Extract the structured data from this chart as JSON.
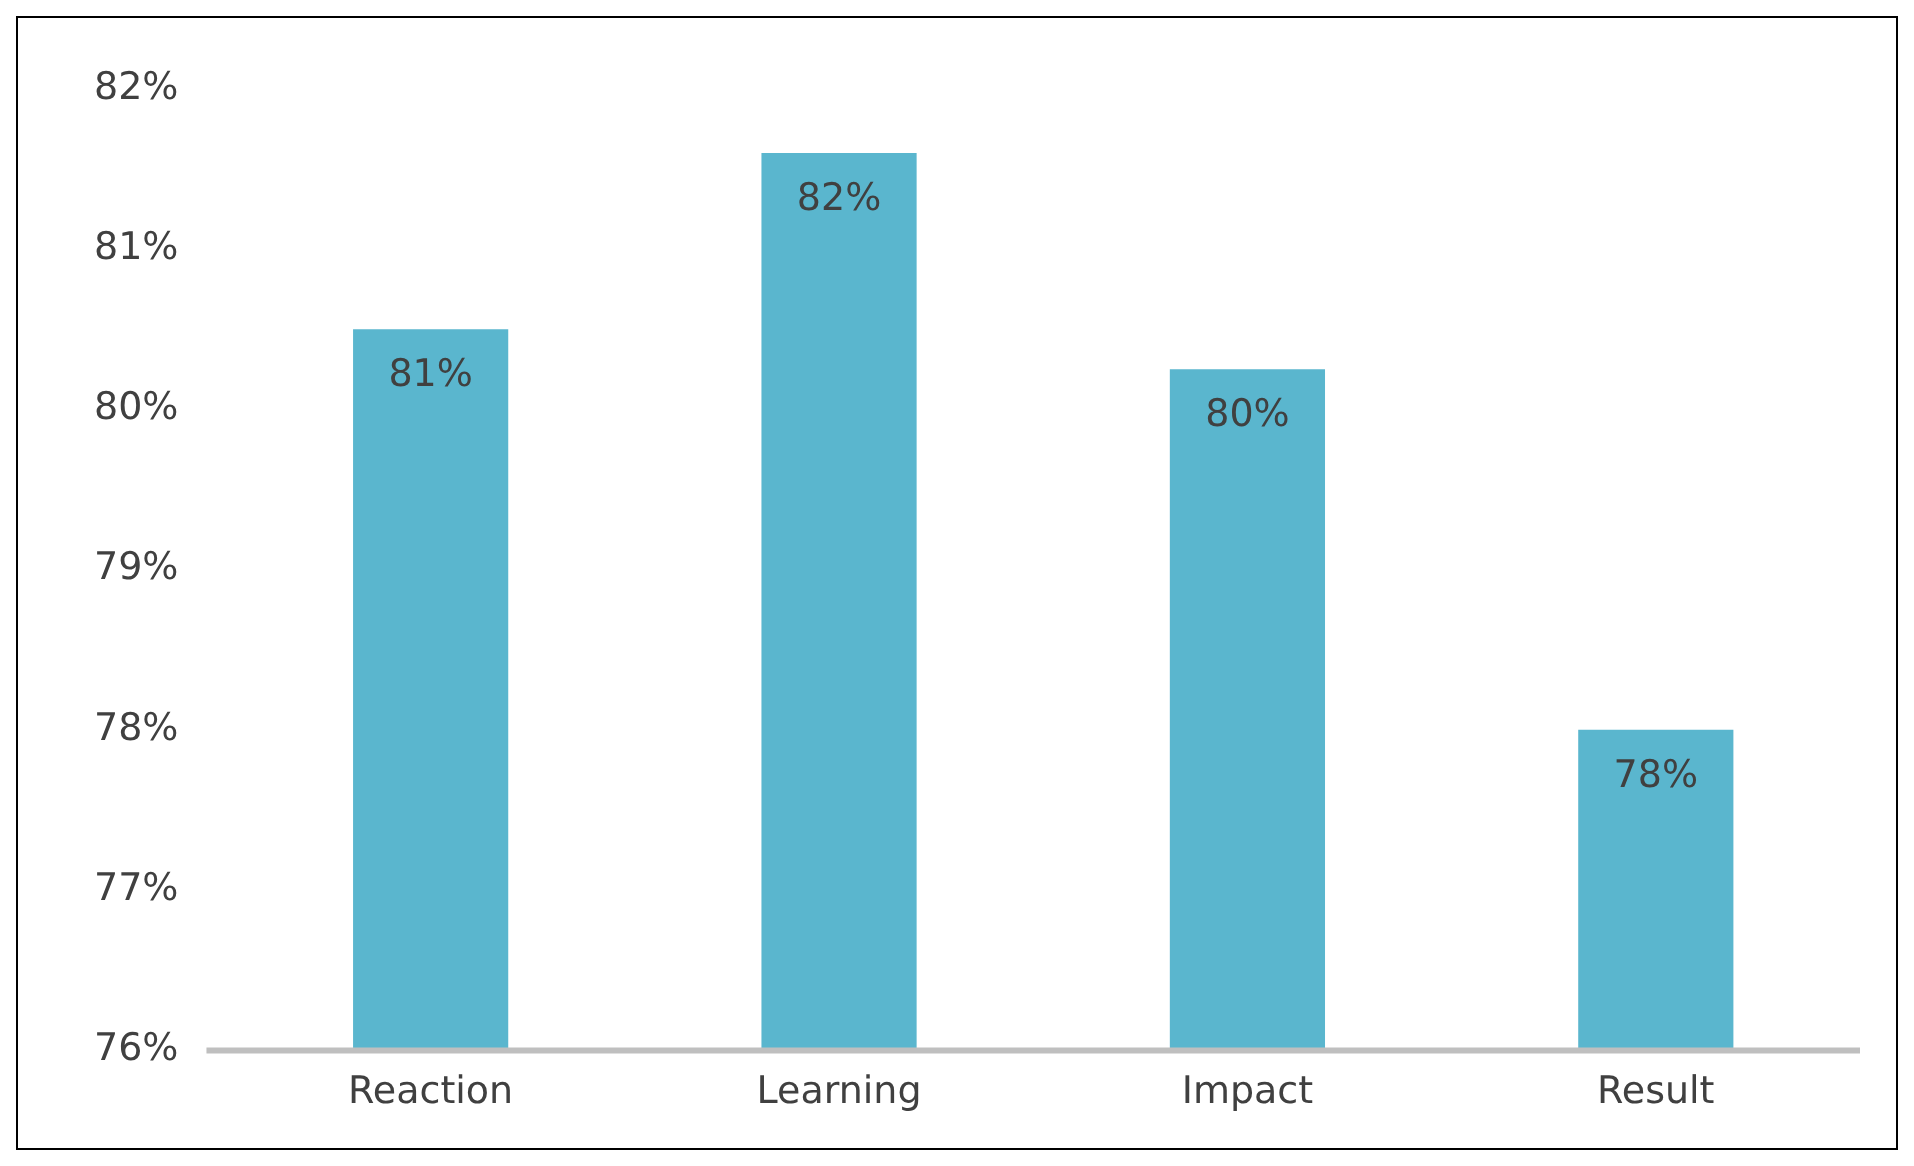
{
  "chart_data": {
    "type": "bar",
    "categories": [
      "Reaction",
      "Learning",
      "Impact",
      "Result"
    ],
    "values": [
      80.5,
      81.6,
      80.25,
      78.0
    ],
    "value_labels": [
      "81%",
      "82%",
      "80%",
      "78%"
    ],
    "color": "#5ab6ce",
    "ylim": [
      76,
      82
    ],
    "yticks": [
      {
        "value": 76,
        "label": "76%"
      },
      {
        "value": 77,
        "label": "77%"
      },
      {
        "value": 78,
        "label": "78%"
      },
      {
        "value": 79,
        "label": "79%"
      },
      {
        "value": 80,
        "label": "80%"
      },
      {
        "value": 81,
        "label": "81%"
      },
      {
        "value": 82,
        "label": "82%"
      }
    ],
    "grid": false,
    "legend": false
  }
}
